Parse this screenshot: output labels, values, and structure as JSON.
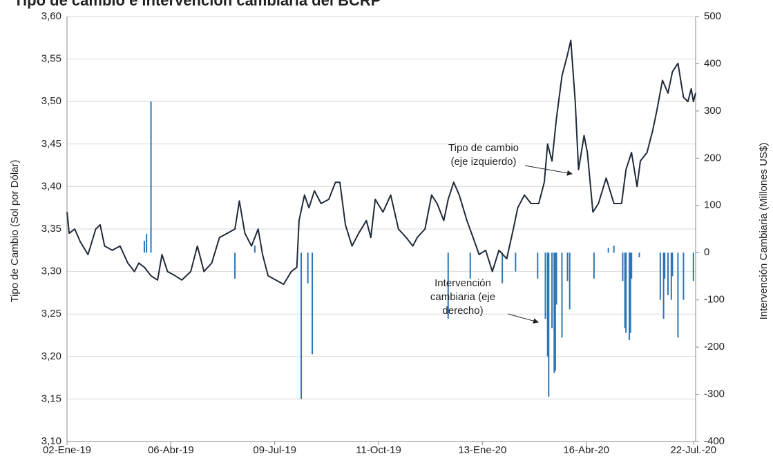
{
  "chart_data": {
    "type": "line_bar_dual",
    "title": "Tipo de cambio e intervención cambiaria del BCRP",
    "y_label": "Tipo de Cambio (Sol por Dólar)",
    "y2_label": "Intervención Cambiaria (Millones US$)",
    "xlim": [
      "2019-01-02",
      "2020-07-24"
    ],
    "xticks": [
      {
        "value": "2019-01-02",
        "label": "02-Ene-19"
      },
      {
        "value": "2019-04-06",
        "label": "06-Abr-19"
      },
      {
        "value": "2019-07-09",
        "label": "09-Jul-19"
      },
      {
        "value": "2019-10-11",
        "label": "11-Oct-19"
      },
      {
        "value": "2020-01-13",
        "label": "13-Ene-20"
      },
      {
        "value": "2020-04-16",
        "label": "16-Abr-20"
      },
      {
        "value": "2020-07-22",
        "label": "22-Jul.-20"
      }
    ],
    "ylim": [
      3.1,
      3.6
    ],
    "yticks": [
      {
        "value": 3.1,
        "label": "3,10"
      },
      {
        "value": 3.15,
        "label": "3,15"
      },
      {
        "value": 3.2,
        "label": "3,20"
      },
      {
        "value": 3.25,
        "label": "3,25"
      },
      {
        "value": 3.3,
        "label": "3,30"
      },
      {
        "value": 3.35,
        "label": "3,35"
      },
      {
        "value": 3.4,
        "label": "3,40"
      },
      {
        "value": 3.45,
        "label": "3,45"
      },
      {
        "value": 3.5,
        "label": "3,50"
      },
      {
        "value": 3.55,
        "label": "3,55"
      },
      {
        "value": 3.6,
        "label": "3,60"
      }
    ],
    "y2lim": [
      -400,
      500
    ],
    "y2ticks": [
      -400,
      -300,
      -200,
      -100,
      0,
      100,
      200,
      300,
      400,
      500
    ],
    "grid": true,
    "series": [
      {
        "name": "Tipo de cambio",
        "type": "line",
        "color": "#1f2a3a",
        "x": [
          "2019-01-02",
          "2019-01-04",
          "2019-01-09",
          "2019-01-14",
          "2019-01-21",
          "2019-01-28",
          "2019-02-01",
          "2019-02-05",
          "2019-02-12",
          "2019-02-19",
          "2019-02-26",
          "2019-03-04",
          "2019-03-08",
          "2019-03-13",
          "2019-03-19",
          "2019-03-25",
          "2019-03-29",
          "2019-04-03",
          "2019-04-10",
          "2019-04-16",
          "2019-04-24",
          "2019-04-30",
          "2019-05-06",
          "2019-05-13",
          "2019-05-20",
          "2019-05-27",
          "2019-06-03",
          "2019-06-07",
          "2019-06-12",
          "2019-06-18",
          "2019-06-24",
          "2019-06-28",
          "2019-07-03",
          "2019-07-10",
          "2019-07-17",
          "2019-07-24",
          "2019-07-29",
          "2019-07-31",
          "2019-08-05",
          "2019-08-09",
          "2019-08-14",
          "2019-08-20",
          "2019-08-27",
          "2019-09-02",
          "2019-09-06",
          "2019-09-11",
          "2019-09-17",
          "2019-09-23",
          "2019-09-30",
          "2019-10-04",
          "2019-10-08",
          "2019-10-15",
          "2019-10-22",
          "2019-10-29",
          "2019-11-05",
          "2019-11-11",
          "2019-11-15",
          "2019-11-22",
          "2019-11-28",
          "2019-12-03",
          "2019-12-09",
          "2019-12-13",
          "2019-12-18",
          "2019-12-23",
          "2019-12-30",
          "2020-01-06",
          "2020-01-10",
          "2020-01-16",
          "2020-01-22",
          "2020-01-28",
          "2020-02-04",
          "2020-02-10",
          "2020-02-14",
          "2020-02-20",
          "2020-02-26",
          "2020-03-04",
          "2020-03-09",
          "2020-03-12",
          "2020-03-16",
          "2020-03-20",
          "2020-03-25",
          "2020-03-30",
          "2020-04-02",
          "2020-04-06",
          "2020-04-09",
          "2020-04-14",
          "2020-04-17",
          "2020-04-22",
          "2020-04-27",
          "2020-05-04",
          "2020-05-11",
          "2020-05-18",
          "2020-05-22",
          "2020-05-27",
          "2020-06-01",
          "2020-06-04",
          "2020-06-10",
          "2020-06-15",
          "2020-06-19",
          "2020-06-24",
          "2020-06-29",
          "2020-07-03",
          "2020-07-08",
          "2020-07-13",
          "2020-07-17",
          "2020-07-20",
          "2020-07-22",
          "2020-07-24"
        ],
        "values": [
          3.37,
          3.345,
          3.35,
          3.335,
          3.32,
          3.35,
          3.355,
          3.33,
          3.325,
          3.33,
          3.31,
          3.3,
          3.31,
          3.305,
          3.295,
          3.29,
          3.32,
          3.3,
          3.295,
          3.29,
          3.3,
          3.33,
          3.3,
          3.31,
          3.34,
          3.345,
          3.35,
          3.383,
          3.345,
          3.33,
          3.35,
          3.32,
          3.295,
          3.29,
          3.285,
          3.3,
          3.305,
          3.36,
          3.39,
          3.375,
          3.395,
          3.38,
          3.385,
          3.405,
          3.405,
          3.355,
          3.33,
          3.345,
          3.36,
          3.34,
          3.385,
          3.37,
          3.39,
          3.35,
          3.34,
          3.33,
          3.34,
          3.35,
          3.39,
          3.38,
          3.36,
          3.385,
          3.405,
          3.39,
          3.36,
          3.335,
          3.32,
          3.325,
          3.3,
          3.325,
          3.315,
          3.35,
          3.375,
          3.39,
          3.38,
          3.38,
          3.405,
          3.45,
          3.43,
          3.48,
          3.53,
          3.555,
          3.572,
          3.5,
          3.42,
          3.46,
          3.44,
          3.37,
          3.38,
          3.41,
          3.38,
          3.38,
          3.42,
          3.44,
          3.4,
          3.43,
          3.44,
          3.465,
          3.49,
          3.525,
          3.51,
          3.535,
          3.545,
          3.505,
          3.5,
          3.515,
          3.5,
          3.51
        ]
      },
      {
        "name": "Intervención cambiaria",
        "type": "bar",
        "axis": "y2",
        "color": "#2e75b6",
        "x": [
          "2019-03-13",
          "2019-03-15",
          "2019-03-19",
          "2019-06-03",
          "2019-06-21",
          "2019-08-02",
          "2019-08-08",
          "2019-08-12",
          "2019-12-13",
          "2020-01-02",
          "2020-01-31",
          "2020-02-12",
          "2020-03-03",
          "2020-03-10",
          "2020-03-12",
          "2020-03-13",
          "2020-03-16",
          "2020-03-18",
          "2020-03-19",
          "2020-03-20",
          "2020-03-25",
          "2020-03-30",
          "2020-04-01",
          "2020-04-23",
          "2020-05-06",
          "2020-05-11",
          "2020-05-19",
          "2020-05-21",
          "2020-05-22",
          "2020-05-25",
          "2020-05-26",
          "2020-05-27",
          "2020-06-03",
          "2020-06-22",
          "2020-06-25",
          "2020-06-26",
          "2020-06-29",
          "2020-07-02",
          "2020-07-03",
          "2020-07-08",
          "2020-07-13",
          "2020-07-22"
        ],
        "values": [
          25,
          40,
          320,
          -55,
          15,
          -310,
          -65,
          -215,
          -140,
          -55,
          -65,
          -40,
          -55,
          -140,
          -220,
          -305,
          -160,
          -255,
          -250,
          -110,
          -180,
          -60,
          -120,
          -55,
          10,
          15,
          -60,
          -160,
          -170,
          -185,
          -170,
          -55,
          -10,
          -100,
          -140,
          -55,
          -90,
          -100,
          -50,
          -180,
          -100,
          -60
        ]
      }
    ],
    "annotations": [
      {
        "lines": [
          "Tipo de cambio",
          "(eje izquierdo)"
        ]
      },
      {
        "lines": [
          "Intervención",
          "cambiaria (eje",
          "derecho)"
        ]
      }
    ]
  }
}
